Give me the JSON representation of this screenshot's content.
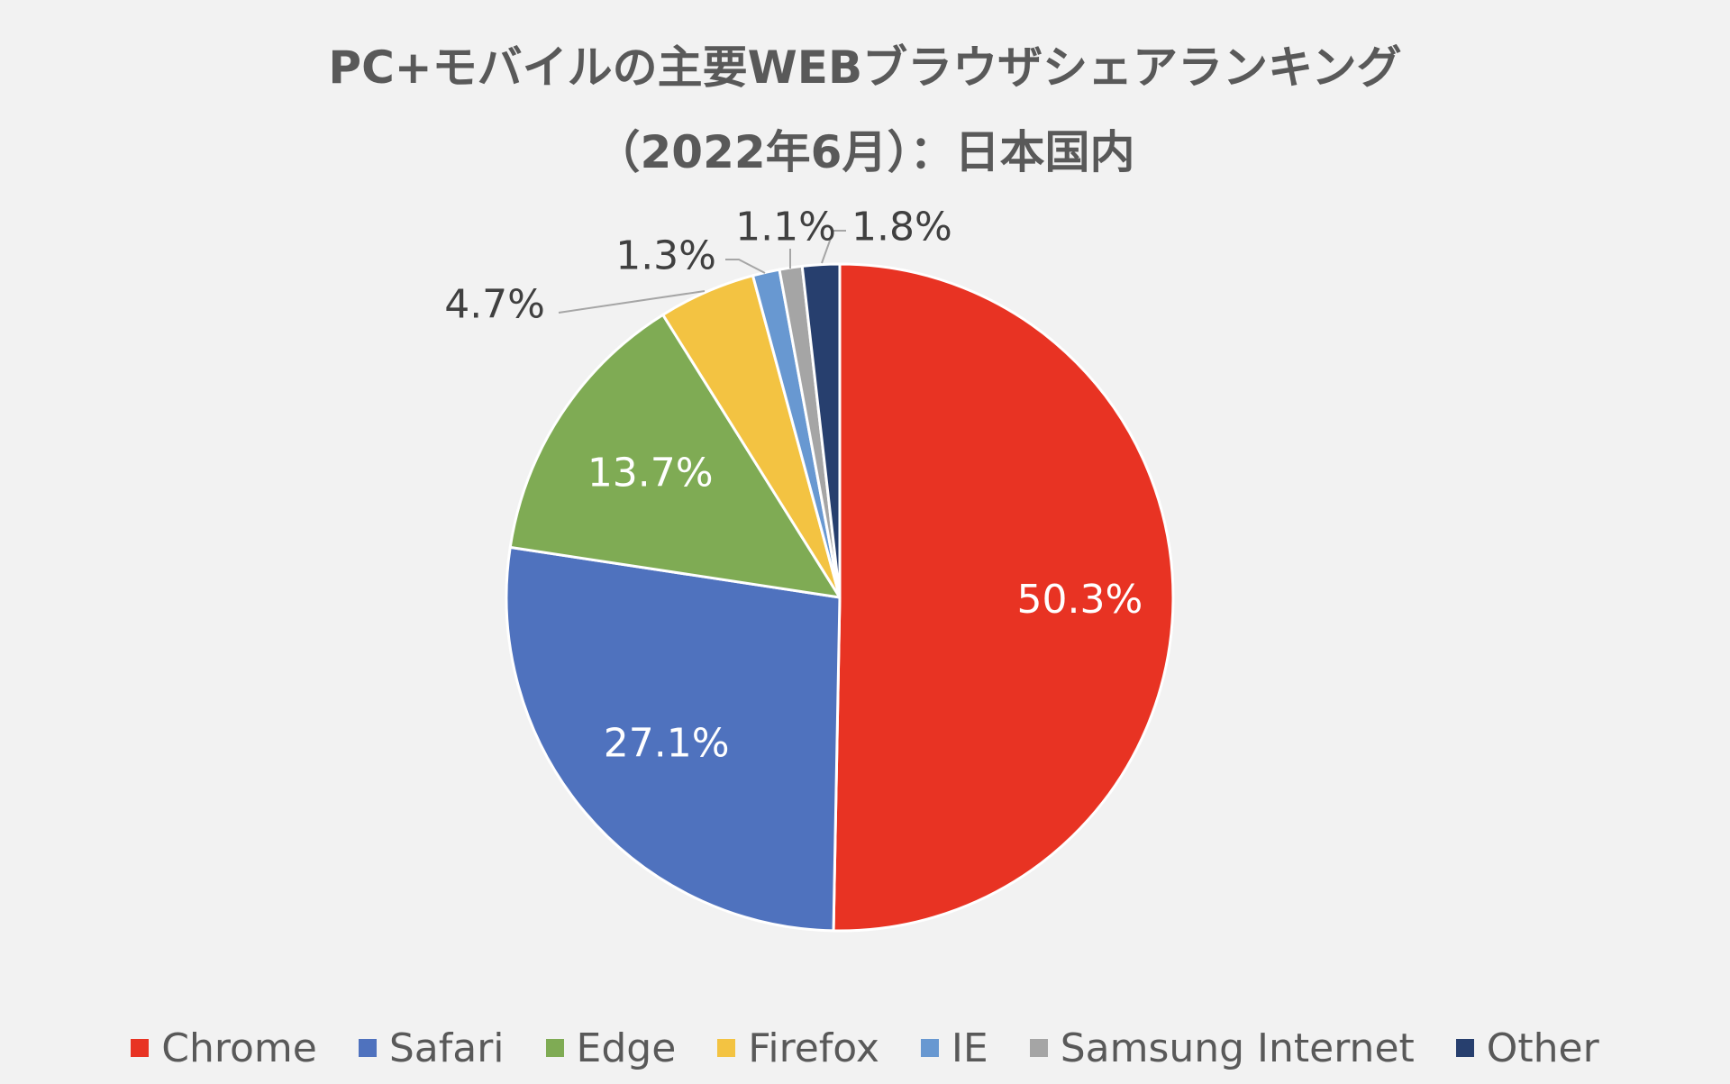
{
  "chart_data": {
    "type": "pie",
    "title": "PC+モバイルの主要WEBブラウザシェアランキング",
    "subtitle": "（2022年6月）：日本国内",
    "categories": [
      "Chrome",
      "Safari",
      "Edge",
      "Firefox",
      "IE",
      "Samsung Internet",
      "Other"
    ],
    "values": [
      50.3,
      27.1,
      13.7,
      4.7,
      1.3,
      1.1,
      1.8
    ],
    "data_labels": [
      "50.3%",
      "27.1%",
      "13.7%",
      "4.7%",
      "1.3%",
      "1.1%",
      "1.8%"
    ],
    "colors": [
      "#e83323",
      "#4f72be",
      "#7fab54",
      "#f3c342",
      "#6898d1",
      "#a5a5a5",
      "#273f6e"
    ],
    "legend_position": "bottom",
    "start_angle": "12 o'clock",
    "direction": "clockwise"
  }
}
